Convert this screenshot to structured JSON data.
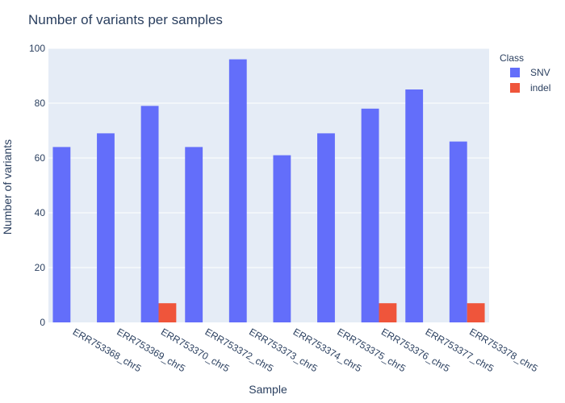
{
  "chart_data": {
    "type": "bar",
    "title": "Number of variants per samples",
    "xlabel": "Sample",
    "ylabel": "Number of variants",
    "ylim": [
      0,
      100
    ],
    "yticks": [
      0,
      20,
      40,
      60,
      80,
      100
    ],
    "grid": true,
    "legend_title": "Class",
    "legend_position": "top-right",
    "categories": [
      "ERR753368_chr5",
      "ERR753369_chr5",
      "ERR753370_chr5",
      "ERR753372_chr5",
      "ERR753373_chr5",
      "ERR753374_chr5",
      "ERR753375_chr5",
      "ERR753376_chr5",
      "ERR753377_chr5",
      "ERR753378_chr5"
    ],
    "series": [
      {
        "name": "SNV",
        "color": "#636efa",
        "values": [
          64,
          69,
          79,
          64,
          96,
          61,
          69,
          78,
          85,
          66
        ]
      },
      {
        "name": "indel",
        "color": "#ef553b",
        "values": [
          0,
          0,
          7,
          0,
          0,
          0,
          0,
          7,
          0,
          7
        ]
      }
    ],
    "plot_background": "#e5ecf6"
  }
}
